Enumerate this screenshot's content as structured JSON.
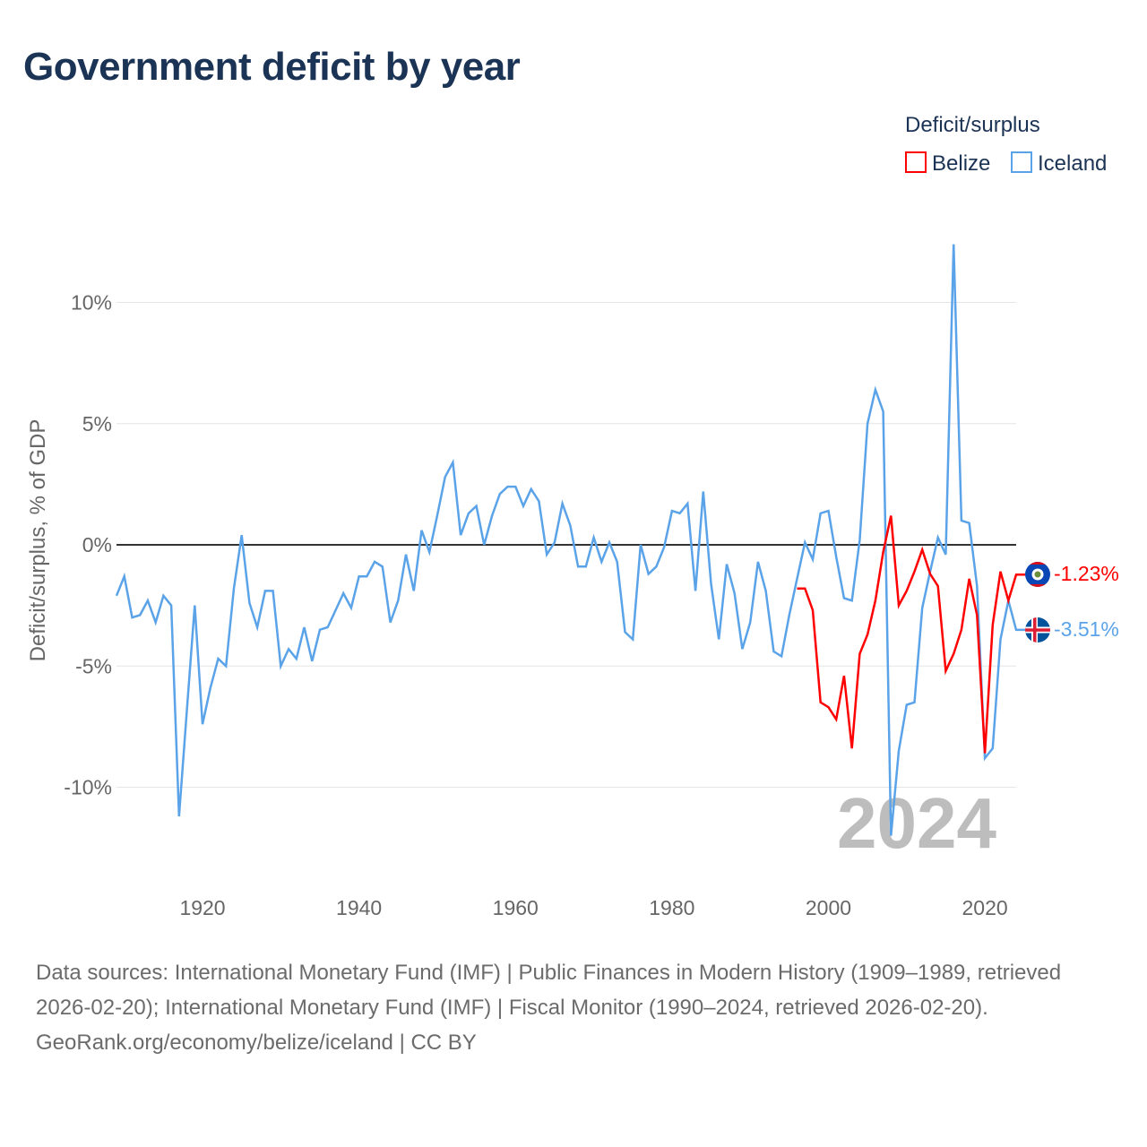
{
  "title": "Government deficit by year",
  "legend": {
    "title": "Deficit/surplus",
    "items": [
      "Belize",
      "Iceland"
    ]
  },
  "end_labels": {
    "belize": "-1.23%",
    "iceland": "-3.51%"
  },
  "year_watermark": "2024",
  "footer": {
    "sources": "Data sources: International Monetary Fund (IMF) | Public Finances in Modern History (1909–1989, retrieved 2026-02-20); International Monetary Fund (IMF) | Fiscal Monitor (1990–2024, retrieved 2026-02-20).",
    "credit": "GeoRank.org/economy/belize/iceland | CC BY"
  },
  "colors": {
    "belize": "#ff0000",
    "iceland": "#5ba3e8",
    "zero": "#333333",
    "grid": "#e6e6e6",
    "watermark": "#bdbdbd"
  },
  "chart_data": {
    "type": "line",
    "title": "Government deficit by year",
    "xlabel": "",
    "ylabel": "Deficit/surplus, % of GDP",
    "xlim": [
      1909,
      2024
    ],
    "ylim": [
      -12.5,
      12.5
    ],
    "xticks": [
      1920,
      1940,
      1960,
      1980,
      2000,
      2020
    ],
    "yticks": [
      {
        "v": 10,
        "label": "10%"
      },
      {
        "v": 5,
        "label": "5%"
      },
      {
        "v": 0,
        "label": "0%"
      },
      {
        "v": -5,
        "label": "-5%"
      },
      {
        "v": -10,
        "label": "-10%"
      }
    ],
    "grid": true,
    "legend_position": "top-right",
    "series": [
      {
        "name": "Belize",
        "key": "belize",
        "start": 1996,
        "values": [
          -1.8,
          -1.8,
          -2.7,
          -6.5,
          -6.7,
          -7.2,
          -5.4,
          -8.4,
          -4.5,
          -3.7,
          -2.3,
          -0.3,
          1.2,
          -2.5,
          -1.9,
          -1.1,
          -0.2,
          -1.2,
          -1.7,
          -5.2,
          -4.5,
          -3.5,
          -1.4,
          -2.9,
          -8.6,
          -3.3,
          -1.1,
          -2.3,
          -1.23
        ]
      },
      {
        "name": "Iceland",
        "key": "iceland",
        "start": 1909,
        "values": [
          -2.1,
          -1.3,
          -3.0,
          -2.9,
          -2.3,
          -3.2,
          -2.1,
          -2.5,
          -11.2,
          -6.8,
          -2.5,
          -7.4,
          -5.9,
          -4.7,
          -5.0,
          -1.8,
          0.4,
          -2.4,
          -3.4,
          -1.9,
          -1.9,
          -5.0,
          -4.3,
          -4.7,
          -3.4,
          -4.8,
          -3.5,
          -3.4,
          -2.7,
          -2.0,
          -2.6,
          -1.3,
          -1.3,
          -0.7,
          -0.9,
          -3.2,
          -2.3,
          -0.4,
          -1.9,
          0.6,
          -0.3,
          1.2,
          2.8,
          3.4,
          0.4,
          1.3,
          1.6,
          0.0,
          1.2,
          2.1,
          2.4,
          2.4,
          1.6,
          2.3,
          1.8,
          -0.4,
          0.1,
          1.7,
          0.8,
          -0.9,
          -0.9,
          0.3,
          -0.7,
          0.1,
          -0.7,
          -3.6,
          -3.9,
          0.0,
          -1.2,
          -0.9,
          -0.1,
          1.4,
          1.3,
          1.7,
          -1.9,
          2.2,
          -1.6,
          -3.9,
          -0.8,
          -2.0,
          -4.3,
          -3.2,
          -0.7,
          -1.9,
          -4.4,
          -4.6,
          -2.9,
          -1.4,
          0.1,
          -0.6,
          1.3,
          1.4,
          -0.5,
          -2.2,
          -2.3,
          0.2,
          5.0,
          6.4,
          5.5,
          -12.0,
          -8.5,
          -6.6,
          -6.5,
          -2.6,
          -1.1,
          0.3,
          -0.4,
          12.4,
          1.0,
          0.9,
          -1.7,
          -8.8,
          -8.4,
          -3.9,
          -2.3,
          -3.51
        ]
      }
    ]
  }
}
